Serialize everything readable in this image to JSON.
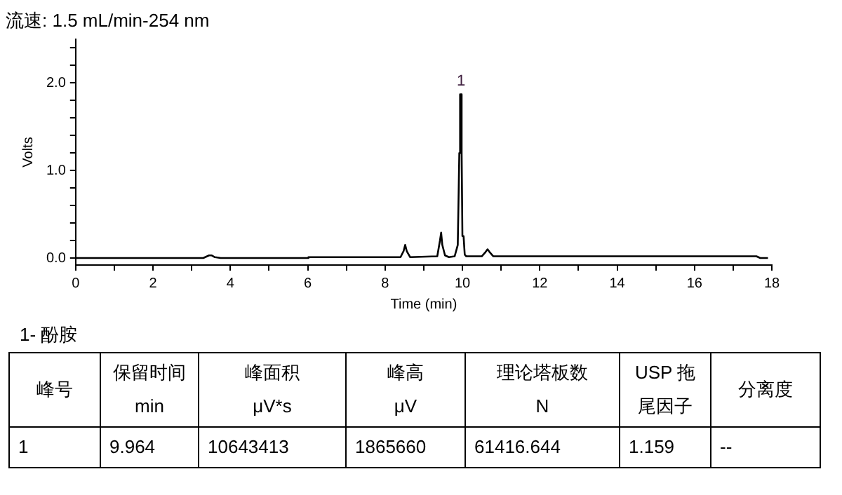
{
  "chart_data": {
    "type": "line",
    "title": "流速: 1.5 mL/min-254 nm",
    "xlabel": "Time (min)",
    "ylabel": "Volts",
    "x": [
      0,
      3.3,
      3.45,
      3.52,
      3.6,
      3.75,
      6.0,
      6.02,
      8.4,
      8.48,
      8.52,
      8.56,
      8.65,
      9.35,
      9.42,
      9.45,
      9.48,
      9.55,
      9.65,
      9.8,
      9.88,
      9.9,
      9.92,
      9.94,
      9.964,
      9.98,
      10.0,
      10.03,
      10.06,
      10.1,
      10.5,
      10.6,
      10.65,
      10.7,
      10.8,
      17.6,
      17.7,
      17.9
    ],
    "values": [
      0,
      0,
      0.03,
      0.03,
      0.01,
      0,
      0,
      0.01,
      0.01,
      0.08,
      0.15,
      0.08,
      0.01,
      0.02,
      0.2,
      0.29,
      0.15,
      0.03,
      0.01,
      0.02,
      0.15,
      0.15,
      1.2,
      1.87,
      1.87,
      1.2,
      0.25,
      0.25,
      0.04,
      0.02,
      0.02,
      0.07,
      0.1,
      0.07,
      0.02,
      0.02,
      0,
      0
    ],
    "color": "#000000",
    "marker": "none",
    "line_style": "solid",
    "grid": false,
    "legend": false,
    "xlim": [
      0,
      18
    ],
    "ylim": [
      -0.08,
      2.5
    ],
    "xticks": [
      0,
      {
        "value": 1,
        "label": null
      },
      2,
      {
        "value": 3,
        "label": null
      },
      4,
      {
        "value": 5,
        "label": null
      },
      6,
      {
        "value": 7,
        "label": null
      },
      8,
      {
        "value": 9,
        "label": null
      },
      10,
      {
        "value": 11,
        "label": null
      },
      12,
      {
        "value": 13,
        "label": null
      },
      14,
      {
        "value": 15,
        "label": null
      },
      16,
      {
        "value": 17,
        "label": null
      },
      18
    ],
    "yticks": [
      {
        "value": 0,
        "label": "0.0"
      },
      {
        "value": 0.2,
        "label": null
      },
      {
        "value": 0.4,
        "label": null
      },
      {
        "value": 0.6,
        "label": null
      },
      {
        "value": 0.8,
        "label": null
      },
      {
        "value": 1,
        "label": "1.0"
      },
      {
        "value": 1.2,
        "label": null
      },
      {
        "value": 1.4,
        "label": null
      },
      {
        "value": 1.6,
        "label": null
      },
      {
        "value": 1.8,
        "label": null
      },
      {
        "value": 2,
        "label": "2.0"
      },
      {
        "value": 2.2,
        "label": null
      },
      {
        "value": 2.4,
        "label": null
      }
    ],
    "annotations": [
      {
        "text": "1",
        "x": 9.964,
        "y": 1.87
      },
      "1-  酚胺",
      "峰号",
      "保留时间\nmin",
      "峰面积\nμV*s",
      "峰高\nμV",
      "理论塔板数\nN",
      "USP 拖尾因子",
      "分离度",
      "1",
      "9.964",
      "10643413",
      "1865660",
      "61416.644",
      "1.159",
      "--"
    ]
  }
}
